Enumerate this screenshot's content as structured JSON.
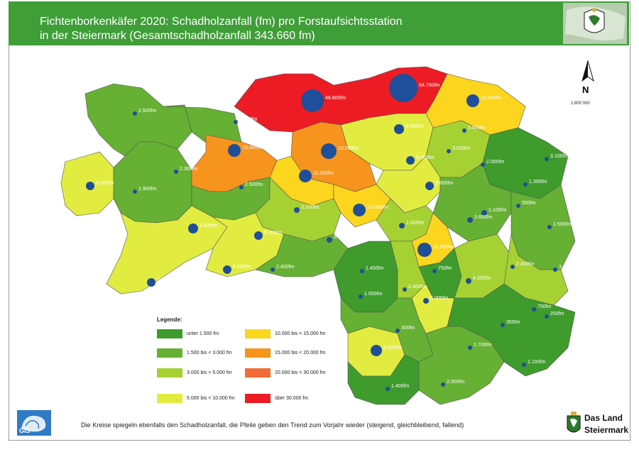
{
  "header": {
    "title_line1": "Fichtenborkenkäfer 2020: Schadholzanfall (fm) pro Forstaufsichtsstation",
    "title_line2": "in der Steiermark (Gesamtschadholzanfall 343.660 fm)"
  },
  "north": {
    "letter": "N",
    "scale": "1:800 000"
  },
  "legend": {
    "title": "Legende:",
    "items": [
      {
        "label": "unter  1.500 fm",
        "color": "#3e9b2c"
      },
      {
        "label": "1.500 bis <  3.000 fm",
        "color": "#66b033"
      },
      {
        "label": "3.000 bis <  5.000 fm",
        "color": "#a6d133"
      },
      {
        "label": "5.000 bis < 10.000 fm",
        "color": "#e2ec40"
      },
      {
        "label": "10.000 bis < 15.000 fm",
        "color": "#fbd51e"
      },
      {
        "label": "15.000 bis < 20.000 fm",
        "color": "#f7941d"
      },
      {
        "label": "20.000 bis < 30.000 fm",
        "color": "#f26a36"
      },
      {
        "label": "über 30.000 fm",
        "color": "#ed1c24"
      }
    ]
  },
  "footnote": "Die Kreise spiegeln ebenfalls den Schadholzanfall, die Pfeile geben den Trend zum Vorjahr wieder (steigend, gleichbleibend, fallend)",
  "logos": {
    "gis": "GIS",
    "dasland_line1": "Das Land",
    "dasland_line2": "Steiermark"
  },
  "map_labels": [
    {
      "text": "2.500fm"
    },
    {
      "text": "2.600fm"
    },
    {
      "text": "48.800fm"
    },
    {
      "text": "54.700fm"
    },
    {
      "text": "12.000fm"
    },
    {
      "text": "9.500fm"
    },
    {
      "text": "3.600fm"
    },
    {
      "text": "15.000fm"
    },
    {
      "text": "19.500fm"
    },
    {
      "text": "9.000fm"
    },
    {
      "text": "3.000fm"
    },
    {
      "text": "2.300fm"
    },
    {
      "text": "8.000fm"
    },
    {
      "text": "11.000fm"
    },
    {
      "text": "1.900fm"
    },
    {
      "text": "2.500fm"
    },
    {
      "text": "9.600fm"
    },
    {
      "text": "13.000fm"
    },
    {
      "text": "3.100fm"
    },
    {
      "text": "5.400fm"
    },
    {
      "text": "5.300fm"
    },
    {
      "text": "3.100fm"
    },
    {
      "text": "1.500fm"
    },
    {
      "text": "12.000fm"
    },
    {
      "text": "3.600fm"
    },
    {
      "text": "5.800fm"
    },
    {
      "text": "6.000fm"
    },
    {
      "text": "2.400fm"
    },
    {
      "text": "1.400fm"
    },
    {
      "text": "1.000fm"
    },
    {
      "text": "2.400fm"
    },
    {
      "text": "5.000fm"
    },
    {
      "text": "750fm"
    },
    {
      "text": "4.350fm"
    },
    {
      "text": "2.400fm"
    },
    {
      "text": "3.100fm"
    },
    {
      "text": "1.300fm"
    },
    {
      "text": "1.500fm"
    },
    {
      "text": "550fm"
    },
    {
      "text": "1.100fm"
    },
    {
      "text": "3.100fm"
    },
    {
      "text": "2.000fm"
    },
    {
      "text": "350fm"
    },
    {
      "text": "8.000fm"
    },
    {
      "text": "300fm"
    },
    {
      "text": "1.700fm"
    },
    {
      "text": "250fm"
    },
    {
      "text": "750fm"
    },
    {
      "text": "2.000fm"
    },
    {
      "text": "1.400fm"
    },
    {
      "text": "1.100fm"
    }
  ]
}
